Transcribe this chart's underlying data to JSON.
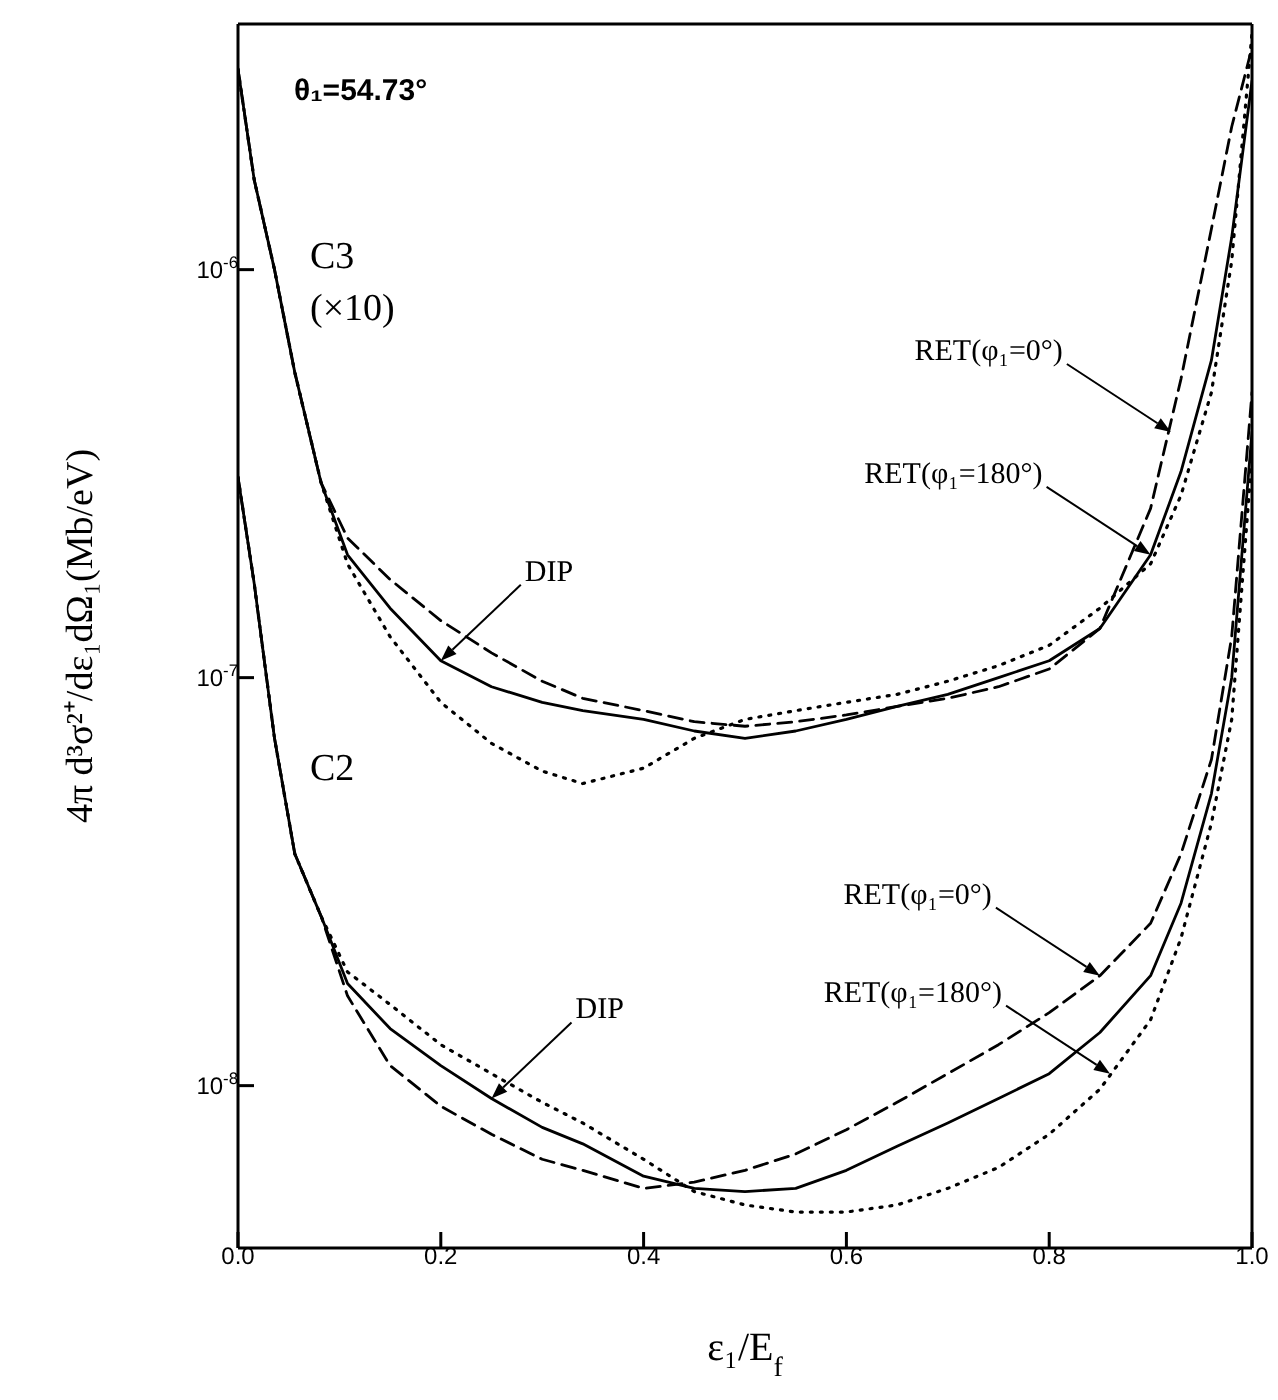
{
  "chart_data": {
    "type": "line",
    "xlabel": "ε₁/E$_{f}$",
    "ylabel": "4π d³σ²⁺/dε₁dΩ₁(Mb/eV)",
    "log": "y",
    "marker": "none",
    "xlim": [
      0,
      1
    ],
    "xticks": [
      {
        "value": 0,
        "label": "0.0"
      },
      {
        "value": 0.2,
        "label": "0.2"
      },
      {
        "value": 0.4,
        "label": "0.4"
      },
      {
        "value": 0.6,
        "label": "0.6"
      },
      {
        "value": 0.8,
        "label": "0.8"
      },
      {
        "value": 1,
        "label": "1.0"
      }
    ],
    "ylim": [
      4e-09,
      4e-06
    ],
    "yticks": [
      {
        "value": 1e-08,
        "label": "10$^{-8}$"
      },
      {
        "value": 1e-07,
        "label": "10$^{-7}$"
      },
      {
        "value": 1e-06,
        "label": "10$^{-6}$"
      }
    ],
    "x": [
      0,
      0.016,
      0.036,
      0.056,
      0.082,
      0.108,
      0.15,
      0.2,
      0.25,
      0.3,
      0.34,
      0.4,
      0.45,
      0.5,
      0.55,
      0.6,
      0.65,
      0.7,
      0.75,
      0.8,
      0.85,
      0.9,
      0.93,
      0.96,
      0.98,
      1.0
    ],
    "series": [
      {
        "color": "#000000",
        "line_style": "solid",
        "values": [
          3.1e-06,
          1.66e-06,
          1e-06,
          5.6e-07,
          3e-07,
          2e-07,
          1.48e-07,
          1.1e-07,
          9.5e-08,
          8.7e-08,
          8.3e-08,
          7.9e-08,
          7.4e-08,
          7.1e-08,
          7.4e-08,
          7.9e-08,
          8.5e-08,
          9.1e-08,
          1e-07,
          1.1e-07,
          1.32e-07,
          2e-07,
          3.2e-07,
          6e-07,
          1.2e-06,
          2.9e-06
        ]
      },
      {
        "color": "#000000",
        "line_style": "dashed",
        "values": [
          3.1e-06,
          1.66e-06,
          1e-06,
          5.6e-07,
          3e-07,
          2.2e-07,
          1.74e-07,
          1.38e-07,
          1.15e-07,
          9.8e-08,
          8.9e-08,
          8.3e-08,
          7.8e-08,
          7.6e-08,
          7.8e-08,
          8.1e-08,
          8.5e-08,
          8.9e-08,
          9.5e-08,
          1.05e-07,
          1.32e-07,
          2.6e-07,
          5.4e-07,
          1.26e-06,
          2.24e-06,
          3.5e-06
        ]
      },
      {
        "color": "#000000",
        "line_style": "dotted",
        "values": [
          3.1e-06,
          1.66e-06,
          1e-06,
          5.6e-07,
          3e-07,
          1.9e-07,
          1.26e-07,
          8.7e-08,
          6.9e-08,
          5.9e-08,
          5.5e-08,
          6e-08,
          7.1e-08,
          7.9e-08,
          8.3e-08,
          8.7e-08,
          9.1e-08,
          9.8e-08,
          1.07e-07,
          1.2e-07,
          1.48e-07,
          1.9e-07,
          2.8e-07,
          5e-07,
          1.05e-06,
          3.8e-06
        ]
      },
      {
        "color": "#000000",
        "line_style": "solid",
        "values": [
          3.1e-07,
          1.7e-07,
          7.1e-08,
          3.7e-08,
          2.6e-08,
          1.78e-08,
          1.38e-08,
          1.12e-08,
          9.3e-09,
          7.9e-09,
          7.2e-09,
          6e-09,
          5.6e-09,
          5.5e-09,
          5.6e-09,
          6.2e-09,
          7.1e-09,
          8.1e-09,
          9.3e-09,
          1.07e-08,
          1.35e-08,
          1.86e-08,
          2.8e-08,
          5.2e-08,
          1e-07,
          4e-07
        ]
      },
      {
        "color": "#000000",
        "line_style": "dashed",
        "values": [
          3.1e-07,
          1.7e-07,
          7.1e-08,
          3.7e-08,
          2.6e-08,
          1.66e-08,
          1.12e-08,
          8.9e-09,
          7.6e-09,
          6.6e-09,
          6.2e-09,
          5.6e-09,
          5.8e-09,
          6.2e-09,
          6.8e-09,
          7.8e-09,
          9.1e-09,
          1.07e-08,
          1.26e-08,
          1.51e-08,
          1.86e-08,
          2.5e-08,
          3.7e-08,
          6.3e-08,
          1.26e-07,
          5e-07
        ]
      },
      {
        "color": "#000000",
        "line_style": "dotted",
        "values": [
          3.1e-07,
          1.7e-07,
          7.1e-08,
          3.7e-08,
          2.6e-08,
          1.9e-08,
          1.58e-08,
          1.26e-08,
          1.07e-08,
          9.1e-09,
          8.1e-09,
          6.6e-09,
          5.5e-09,
          5.1e-09,
          4.9e-09,
          4.9e-09,
          5.1e-09,
          5.6e-09,
          6.3e-09,
          7.6e-09,
          9.8e-09,
          1.45e-08,
          2.3e-08,
          4.4e-08,
          7.9e-08,
          3.5e-07
        ]
      }
    ],
    "annotations": [
      "θ₁=54.73°",
      "C3 (×10)",
      "C2",
      {
        "text": "DIP",
        "x": 0.2,
        "y": 1.1e-07
      },
      {
        "text": "RET(φ₁=0°)",
        "x": 0.92,
        "y": 4e-07
      },
      {
        "text": "RET(φ₁=180°)",
        "x": 0.9,
        "y": 2e-07
      },
      {
        "text": "DIP",
        "x": 0.25,
        "y": 9.3e-09
      },
      {
        "text": "RET(φ₁=0°)",
        "x": 0.85,
        "y": 1.86e-08
      },
      {
        "text": "RET(φ₁=180°)",
        "x": 0.86,
        "y": 1.07e-08
      }
    ]
  }
}
